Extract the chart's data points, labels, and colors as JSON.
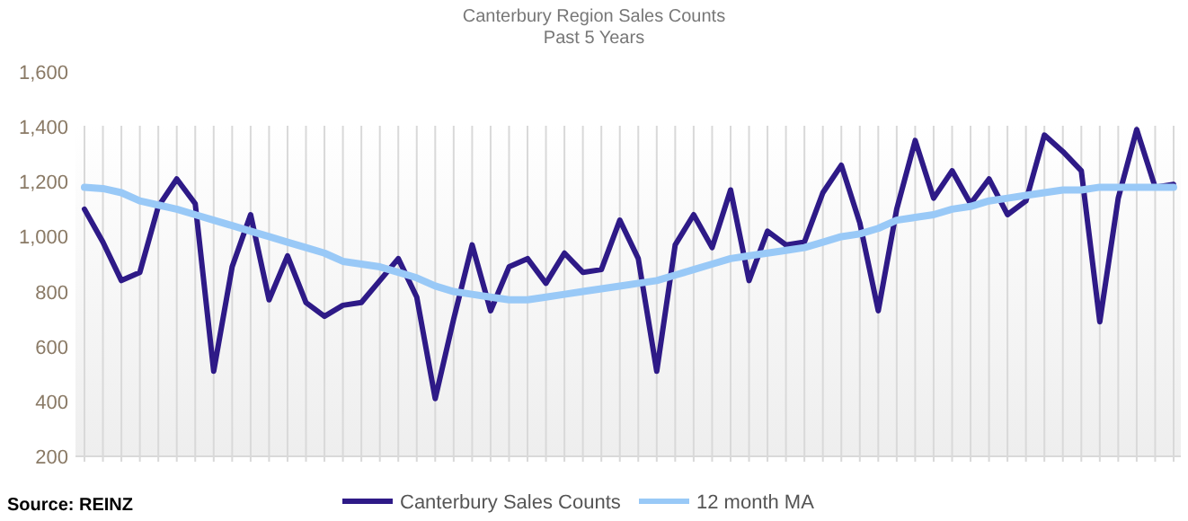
{
  "chart_data": {
    "type": "line",
    "title": "Canterbury Region Sales Counts",
    "subtitle": "Past 5 Years",
    "categories": [
      null,
      null,
      null,
      null,
      null,
      null,
      null,
      null,
      null,
      null,
      null,
      null,
      null,
      null,
      null,
      null,
      null,
      null,
      null,
      null,
      null,
      null,
      null,
      null,
      null,
      null,
      null,
      null,
      null,
      null,
      null,
      null,
      null,
      null,
      null,
      null,
      null,
      null,
      null,
      null,
      null,
      null,
      null,
      null,
      null,
      null,
      null,
      null,
      null,
      null,
      null,
      null,
      null,
      null,
      null,
      null,
      null,
      null,
      null,
      null
    ],
    "series": [
      {
        "name": "Canterbury Sales Counts",
        "color": "#2e1a87",
        "values": [
          1100,
          980,
          840,
          870,
          1110,
          1210,
          1120,
          510,
          890,
          1080,
          770,
          930,
          760,
          710,
          750,
          760,
          840,
          920,
          780,
          410,
          700,
          970,
          730,
          890,
          920,
          830,
          940,
          870,
          880,
          1060,
          920,
          510,
          970,
          1080,
          960,
          1170,
          840,
          1020,
          970,
          980,
          1160,
          1260,
          1050,
          730,
          1100,
          1350,
          1140,
          1240,
          1120,
          1210,
          1080,
          1130,
          1370,
          1310,
          1240,
          690,
          1140,
          1390,
          1180,
          1190
        ]
      },
      {
        "name": "12 month MA",
        "color": "#99c9f7",
        "values": [
          1180,
          1175,
          1160,
          1130,
          1115,
          1100,
          1080,
          1060,
          1040,
          1020,
          1000,
          980,
          960,
          940,
          910,
          900,
          890,
          870,
          850,
          820,
          800,
          790,
          780,
          770,
          770,
          780,
          790,
          800,
          810,
          820,
          830,
          840,
          860,
          880,
          900,
          920,
          930,
          940,
          950,
          960,
          980,
          1000,
          1010,
          1030,
          1060,
          1070,
          1080,
          1100,
          1110,
          1130,
          1140,
          1150,
          1160,
          1170,
          1170,
          1180,
          1180,
          1180,
          1180,
          1180
        ]
      }
    ],
    "ylim": [
      200,
      1600
    ],
    "yticks": [
      {
        "value": 200,
        "label": "200"
      },
      {
        "value": 400,
        "label": "400"
      },
      {
        "value": 600,
        "label": "600"
      },
      {
        "value": 800,
        "label": "800"
      },
      {
        "value": 1000,
        "label": "1,000"
      },
      {
        "value": 1200,
        "label": "1,200"
      },
      {
        "value": 1400,
        "label": "1,400"
      },
      {
        "value": 1600,
        "label": "1,600"
      }
    ],
    "grid": "x",
    "legend": "bottom",
    "marker": "none",
    "line_style": "solid",
    "annotations": [
      "Source: REINZ"
    ]
  }
}
